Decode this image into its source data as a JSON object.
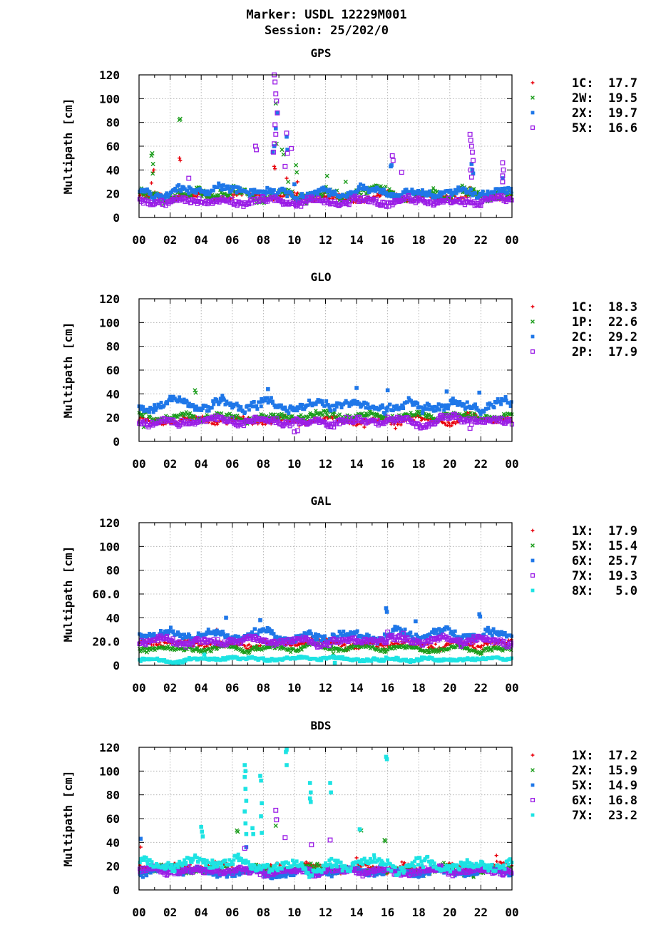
{
  "header": {
    "marker": "Marker: USDL 12229M001",
    "session": "Session: 25/202/0"
  },
  "chart_data": [
    {
      "type": "scatter",
      "title": "GPS",
      "xlabel": "",
      "ylabel": "Multipath [cm]",
      "x_ticks": [
        "00",
        "02",
        "04",
        "06",
        "08",
        "10",
        "12",
        "14",
        "16",
        "18",
        "20",
        "22",
        "00"
      ],
      "y_ticks": [
        "0",
        "20",
        "40",
        "60",
        "80",
        "100",
        "120"
      ],
      "xlim": [
        0,
        24
      ],
      "ylim": [
        0,
        120
      ],
      "grid": true,
      "legend_position": "right",
      "series": [
        {
          "name": "1C",
          "value": "17.7",
          "color": "#e8000b",
          "marker": "plus",
          "base": 17,
          "spread": 4,
          "outliers": [
            [
              0.9,
              38
            ],
            [
              0.95,
              40
            ],
            [
              0.8,
              29
            ],
            [
              2.6,
              50
            ],
            [
              2.65,
              48
            ],
            [
              8.7,
              43
            ],
            [
              8.75,
              41
            ],
            [
              9.5,
              33
            ],
            [
              10.2,
              30
            ],
            [
              21.3,
              25
            ]
          ]
        },
        {
          "name": "2W",
          "value": "19.5",
          "color": "#1a9c1a",
          "marker": "cross",
          "base": 20,
          "spread": 6,
          "outliers": [
            [
              0.8,
              52
            ],
            [
              0.85,
              54
            ],
            [
              0.9,
              45
            ],
            [
              0.88,
              37
            ],
            [
              2.6,
              82
            ],
            [
              2.65,
              83
            ],
            [
              8.8,
              96
            ],
            [
              8.85,
              62
            ],
            [
              9.2,
              57
            ],
            [
              9.3,
              53
            ],
            [
              9.6,
              30
            ],
            [
              10.1,
              44
            ],
            [
              10.15,
              38
            ],
            [
              12.1,
              35
            ],
            [
              13.3,
              30
            ]
          ]
        },
        {
          "name": "2X",
          "value": "19.7",
          "color": "#1f77e8",
          "marker": "square",
          "base": 21,
          "spread": 5,
          "outliers": [
            [
              8.6,
              55
            ],
            [
              8.7,
              60
            ],
            [
              8.8,
              75
            ],
            [
              8.9,
              88
            ],
            [
              9.5,
              68
            ],
            [
              9.55,
              57
            ],
            [
              10.0,
              28
            ],
            [
              16.2,
              43
            ],
            [
              16.25,
              44
            ],
            [
              21.4,
              45
            ],
            [
              21.45,
              40
            ],
            [
              21.5,
              37
            ],
            [
              23.4,
              33
            ]
          ]
        },
        {
          "name": "5X",
          "value": "16.6",
          "color": "#9b1ee6",
          "marker": "open-square",
          "base": 14,
          "spread": 4,
          "outliers": [
            [
              7.5,
              60
            ],
            [
              7.55,
              57
            ],
            [
              8.7,
              120
            ],
            [
              8.75,
              114
            ],
            [
              8.8,
              104
            ],
            [
              8.85,
              98
            ],
            [
              8.9,
              88
            ],
            [
              8.75,
              78
            ],
            [
              8.8,
              70
            ],
            [
              8.7,
              62
            ],
            [
              8.65,
              55
            ],
            [
              9.4,
              43
            ],
            [
              9.5,
              71
            ],
            [
              9.55,
              54
            ],
            [
              9.8,
              58
            ],
            [
              16.3,
              52
            ],
            [
              16.35,
              48
            ],
            [
              16.9,
              38
            ],
            [
              21.3,
              70
            ],
            [
              21.35,
              65
            ],
            [
              21.4,
              60
            ],
            [
              21.45,
              55
            ],
            [
              21.5,
              48
            ],
            [
              21.35,
              40
            ],
            [
              21.4,
              34
            ],
            [
              23.4,
              46
            ],
            [
              23.45,
              40
            ],
            [
              23.4,
              35
            ],
            [
              23.4,
              30
            ],
            [
              3.2,
              33
            ]
          ]
        }
      ]
    },
    {
      "type": "scatter",
      "title": "GLO",
      "xlabel": "",
      "ylabel": "Multipath [cm]",
      "x_ticks": [
        "00",
        "02",
        "04",
        "06",
        "08",
        "10",
        "12",
        "14",
        "16",
        "18",
        "20",
        "22",
        "00"
      ],
      "y_ticks": [
        "0",
        "20",
        "40",
        "60",
        "80",
        "100",
        "120"
      ],
      "xlim": [
        0,
        24
      ],
      "ylim": [
        0,
        120
      ],
      "grid": true,
      "legend_position": "right",
      "series": [
        {
          "name": "1C",
          "value": "18.3",
          "color": "#e8000b",
          "marker": "plus",
          "base": 17,
          "spread": 4,
          "outliers": [
            [
              8.5,
              15
            ],
            [
              10.3,
              13
            ],
            [
              14.5,
              12
            ],
            [
              16.5,
              11
            ]
          ]
        },
        {
          "name": "1P",
          "value": "22.6",
          "color": "#1a9c1a",
          "marker": "cross",
          "base": 21,
          "spread": 4,
          "outliers": [
            [
              3.6,
              43
            ],
            [
              3.65,
              41
            ],
            [
              0.3,
              12
            ]
          ]
        },
        {
          "name": "2C",
          "value": "29.2",
          "color": "#1f77e8",
          "marker": "square",
          "base": 30,
          "spread": 6,
          "outliers": [
            [
              8.3,
              44
            ],
            [
              14.0,
              45
            ],
            [
              16.0,
              43
            ],
            [
              19.8,
              42
            ],
            [
              21.9,
              41
            ]
          ]
        },
        {
          "name": "2P",
          "value": "17.9",
          "color": "#9b1ee6",
          "marker": "open-square",
          "base": 17,
          "spread": 4,
          "outliers": [
            [
              10.0,
              8
            ],
            [
              10.2,
              9
            ],
            [
              21.3,
              11
            ]
          ]
        }
      ]
    },
    {
      "type": "scatter",
      "title": "GAL",
      "xlabel": "",
      "ylabel": "Multipath [cm]",
      "x_ticks": [
        "00",
        "02",
        "04",
        "06",
        "08",
        "10",
        "12",
        "14",
        "16",
        "18",
        "20",
        "22",
        "00"
      ],
      "y_ticks": [
        "0",
        "20.0",
        "40",
        "60.0",
        "80",
        "100",
        "120"
      ],
      "xlim": [
        0,
        24
      ],
      "ylim": [
        0,
        120
      ],
      "grid": true,
      "legend_position": "right",
      "series": [
        {
          "name": "1X",
          "value": "17.9",
          "color": "#e8000b",
          "marker": "plus",
          "base": 18,
          "spread": 4,
          "outliers": [
            [
              5.0,
              30
            ],
            [
              5.05,
              29
            ]
          ]
        },
        {
          "name": "5X",
          "value": "15.4",
          "color": "#1a9c1a",
          "marker": "cross",
          "base": 14,
          "spread": 3,
          "outliers": [
            [
              0.5,
              11
            ],
            [
              12.5,
              10
            ]
          ]
        },
        {
          "name": "6X",
          "value": "25.7",
          "color": "#1f77e8",
          "marker": "square",
          "base": 26,
          "spread": 5,
          "outliers": [
            [
              5.6,
              40
            ],
            [
              7.8,
              38
            ],
            [
              15.9,
              48
            ],
            [
              15.95,
              45
            ],
            [
              17.8,
              37
            ],
            [
              21.9,
              43
            ],
            [
              21.95,
              41
            ]
          ]
        },
        {
          "name": "7X",
          "value": "19.3",
          "color": "#9b1ee6",
          "marker": "open-square",
          "base": 20,
          "spread": 4,
          "outliers": [
            [
              16.0,
              28
            ],
            [
              17.0,
              27
            ]
          ]
        },
        {
          "name": "8X",
          "value": "5.0",
          "color": "#1de3e3",
          "marker": "square",
          "base": 5,
          "spread": 2,
          "outliers": [
            [
              4.2,
              9
            ],
            [
              12.6,
              2
            ]
          ]
        }
      ]
    },
    {
      "type": "scatter",
      "title": "BDS",
      "xlabel": "",
      "ylabel": "Multipath [cm]",
      "x_ticks": [
        "00",
        "02",
        "04",
        "06",
        "08",
        "10",
        "12",
        "14",
        "16",
        "18",
        "20",
        "22",
        "00"
      ],
      "y_ticks": [
        "0",
        "20",
        "40",
        "60",
        "80",
        "100",
        "120"
      ],
      "xlim": [
        0,
        24
      ],
      "ylim": [
        0,
        120
      ],
      "grid": true,
      "legend_position": "right",
      "series": [
        {
          "name": "1X",
          "value": "17.2",
          "color": "#e8000b",
          "marker": "plus",
          "base": 19,
          "spread": 4,
          "outliers": [
            [
              0.1,
              36
            ],
            [
              23.0,
              29
            ],
            [
              14.0,
              27
            ]
          ]
        },
        {
          "name": "2X",
          "value": "15.9",
          "color": "#1a9c1a",
          "marker": "cross",
          "base": 17,
          "spread": 4,
          "outliers": [
            [
              6.3,
              50
            ],
            [
              6.35,
              49
            ],
            [
              8.8,
              54
            ],
            [
              15.8,
              42
            ],
            [
              15.85,
              41
            ],
            [
              14.3,
              50
            ]
          ]
        },
        {
          "name": "5X",
          "value": "14.9",
          "color": "#1f77e8",
          "marker": "square",
          "base": 15,
          "spread": 4,
          "outliers": [
            [
              0.1,
              43
            ],
            [
              6.9,
              36
            ]
          ]
        },
        {
          "name": "6X",
          "value": "16.8",
          "color": "#9b1ee6",
          "marker": "open-square",
          "base": 16,
          "spread": 4,
          "outliers": [
            [
              8.8,
              67
            ],
            [
              8.85,
              59
            ],
            [
              9.4,
              44
            ],
            [
              11.1,
              38
            ],
            [
              12.3,
              42
            ],
            [
              6.8,
              35
            ]
          ]
        },
        {
          "name": "7X",
          "value": "23.2",
          "color": "#1de3e3",
          "marker": "square",
          "base": 21,
          "spread": 6,
          "outliers": [
            [
              4.0,
              53
            ],
            [
              4.05,
              49
            ],
            [
              4.1,
              45
            ],
            [
              6.8,
              105
            ],
            [
              6.85,
              100
            ],
            [
              6.8,
              95
            ],
            [
              6.85,
              85
            ],
            [
              6.9,
              75
            ],
            [
              6.8,
              66
            ],
            [
              6.85,
              56
            ],
            [
              6.9,
              47
            ],
            [
              7.3,
              52
            ],
            [
              7.35,
              47
            ],
            [
              7.8,
              96
            ],
            [
              7.85,
              92
            ],
            [
              7.9,
              73
            ],
            [
              7.85,
              62
            ],
            [
              7.9,
              48
            ],
            [
              9.5,
              118
            ],
            [
              9.45,
              116
            ],
            [
              9.5,
              105
            ],
            [
              11.0,
              90
            ],
            [
              11.05,
              82
            ],
            [
              11.0,
              77
            ],
            [
              11.05,
              74
            ],
            [
              12.3,
              90
            ],
            [
              12.35,
              82
            ],
            [
              14.2,
              51
            ],
            [
              15.9,
              112
            ],
            [
              15.95,
              110
            ]
          ]
        }
      ]
    }
  ]
}
